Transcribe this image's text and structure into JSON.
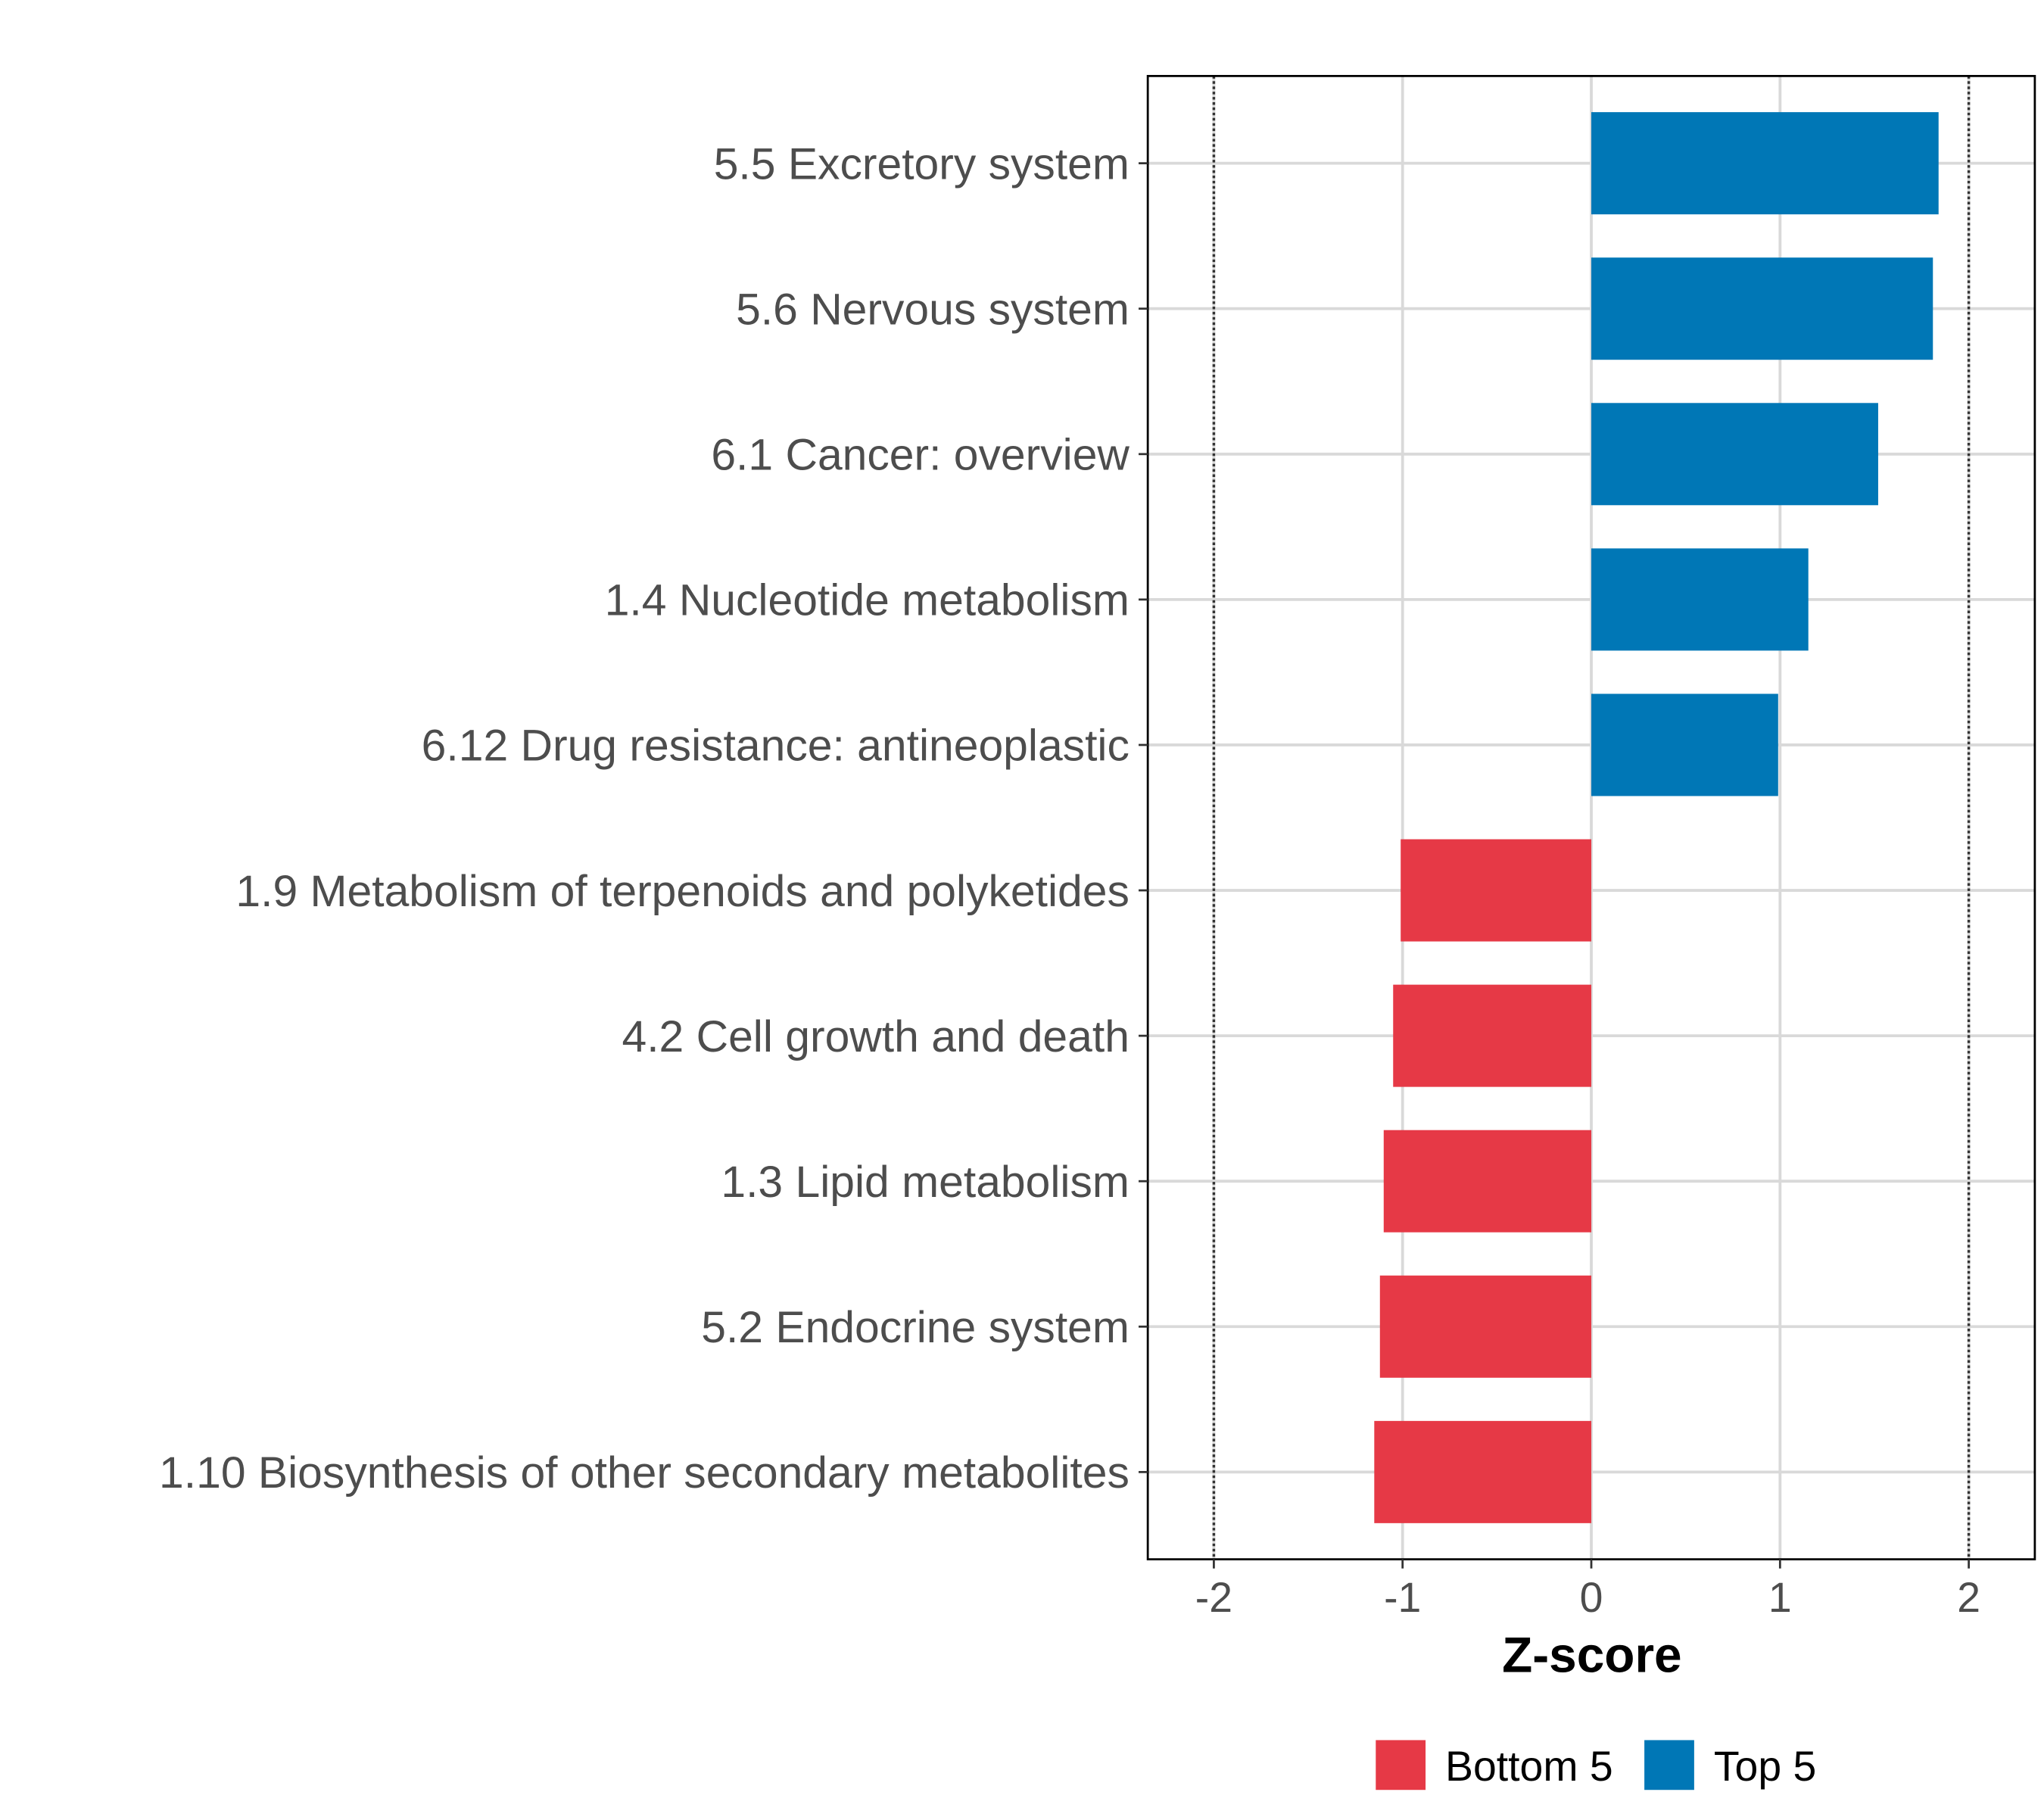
{
  "chart_data": {
    "type": "bar",
    "orientation": "horizontal",
    "categories": [
      "5.5 Excretory system",
      "5.6 Nervous system",
      "6.1 Cancer: overview",
      "1.4 Nucleotide metabolism",
      "6.12 Drug resistance: antineoplastic",
      "1.9 Metabolism of terpenoids and polyketides",
      "4.2 Cell growth and death",
      "1.3 Lipid metabolism",
      "5.2 Endocrine system",
      "1.10 Biosynthesis of other secondary metabolites"
    ],
    "values": [
      1.84,
      1.81,
      1.52,
      1.15,
      0.99,
      -1.01,
      -1.05,
      -1.1,
      -1.12,
      -1.15
    ],
    "groups": [
      "Top 5",
      "Top 5",
      "Top 5",
      "Top 5",
      "Top 5",
      "Bottom 5",
      "Bottom 5",
      "Bottom 5",
      "Bottom 5",
      "Bottom 5"
    ],
    "xlabel": "Z-score",
    "ylabel": "",
    "xlim": [
      -2.35,
      2.35
    ],
    "xticks": [
      -2,
      -1,
      0,
      1,
      2
    ],
    "xtick_labels": [
      "-2",
      "-1",
      "0",
      "1",
      "2"
    ],
    "reference_lines": [
      -2,
      2
    ],
    "grid": true,
    "legend": {
      "position": "bottom",
      "entries": [
        {
          "label": "Bottom 5",
          "color": "#E63946"
        },
        {
          "label": "Top 5",
          "color": "#0077B6"
        }
      ]
    }
  }
}
